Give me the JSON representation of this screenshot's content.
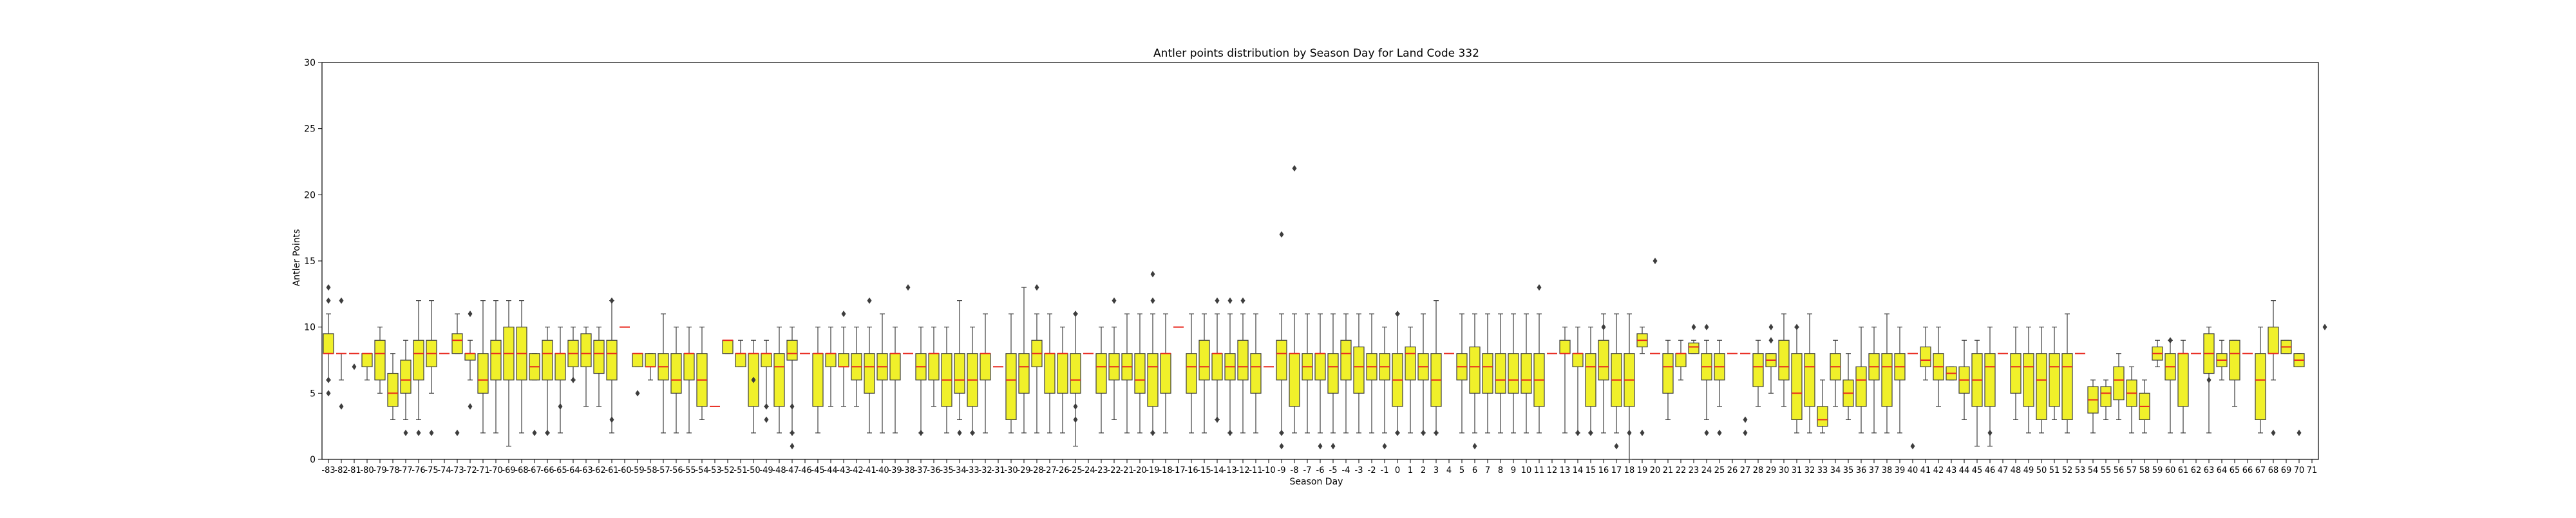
{
  "chart_data": {
    "type": "box",
    "title": "Antler points distribution by Season Day for Land Code 332",
    "xlabel": "Season Day",
    "ylabel": "Antler Points",
    "ylim": [
      0,
      30
    ],
    "yticks": [
      0,
      5,
      10,
      15,
      20,
      25,
      30
    ],
    "categories": [
      -83,
      -82,
      -81,
      -80,
      -79,
      -78,
      -77,
      -76,
      -75,
      -74,
      -73,
      -72,
      -71,
      -70,
      -69,
      -68,
      -67,
      -66,
      -65,
      -64,
      -63,
      -62,
      -61,
      -60,
      -59,
      -58,
      -57,
      -56,
      -55,
      -54,
      -53,
      -52,
      -51,
      -50,
      -49,
      -48,
      -47,
      -46,
      -45,
      -44,
      -43,
      -42,
      -41,
      -40,
      -39,
      -38,
      -37,
      -36,
      -35,
      -34,
      -33,
      -32,
      -31,
      -30,
      -29,
      -28,
      -27,
      -26,
      -25,
      -24,
      -23,
      -22,
      -21,
      -20,
      -19,
      -18,
      -17,
      -16,
      -15,
      -14,
      -13,
      -12,
      -11,
      -10,
      -9,
      -8,
      -7,
      -6,
      -5,
      -4,
      -3,
      -2,
      -1,
      0,
      1,
      2,
      3,
      4,
      5,
      6,
      7,
      8,
      9,
      10,
      11,
      12,
      13,
      14,
      15,
      16,
      17,
      18,
      19,
      20,
      21,
      22,
      23,
      24,
      25,
      26,
      27,
      28,
      29,
      30,
      31,
      32,
      33,
      34,
      35,
      36,
      37,
      38,
      39,
      40,
      41,
      42,
      43,
      44,
      45,
      46,
      47,
      48,
      49,
      50,
      51,
      52,
      53,
      54,
      55,
      56,
      57,
      58,
      59,
      60,
      61,
      62,
      63,
      64,
      65,
      66,
      67,
      68,
      69,
      70,
      71
    ],
    "box_color": "#f0f02a",
    "median_color": "#e8281e",
    "boxes": [
      [
        6,
        8,
        8,
        9.5,
        11
      ],
      [
        6,
        8,
        8,
        8,
        8
      ],
      [
        8,
        8,
        8,
        8,
        8
      ],
      [
        6,
        7,
        8,
        8,
        8
      ],
      [
        5,
        6,
        8,
        9,
        10
      ],
      [
        3,
        4,
        5,
        6.5,
        8
      ],
      [
        3,
        5,
        6,
        7.5,
        9
      ],
      [
        3,
        6,
        8,
        9,
        12
      ],
      [
        5,
        7,
        8,
        9,
        12
      ],
      [
        8,
        8,
        8,
        8,
        8
      ],
      [
        8,
        8,
        9,
        9.5,
        11
      ],
      [
        6,
        7.5,
        8,
        8,
        9
      ],
      [
        2,
        5,
        6,
        8,
        12
      ],
      [
        2,
        6,
        8,
        9,
        12
      ],
      [
        1,
        6,
        8,
        10,
        12
      ],
      [
        2,
        6,
        8,
        10,
        12
      ],
      [
        6,
        6,
        7,
        8,
        8
      ],
      [
        2,
        6,
        8,
        9,
        10
      ],
      [
        2,
        6,
        8,
        8,
        10
      ],
      [
        6,
        7,
        8,
        9,
        10
      ],
      [
        4,
        7,
        8,
        9.5,
        10
      ],
      [
        4,
        6.5,
        8,
        9,
        10
      ],
      [
        2,
        6,
        8,
        9,
        12
      ],
      [
        10,
        10,
        10,
        10,
        10
      ],
      [
        7,
        7,
        8,
        8,
        8
      ],
      [
        6,
        7,
        7,
        8,
        8
      ],
      [
        2,
        6,
        7,
        8,
        11
      ],
      [
        2,
        5,
        6,
        8,
        10
      ],
      [
        2,
        6,
        8,
        8,
        10
      ],
      [
        3,
        4,
        6,
        8,
        10
      ],
      [
        4,
        4,
        4,
        4,
        4
      ],
      [
        8,
        8,
        9,
        9,
        9
      ],
      [
        7,
        7,
        8,
        8,
        9
      ],
      [
        2,
        4,
        8,
        8,
        9
      ],
      [
        4,
        7,
        8,
        8,
        9
      ],
      [
        2,
        4,
        7,
        8,
        10
      ],
      [
        2,
        7.5,
        8,
        9,
        10
      ],
      [
        8,
        8,
        8,
        8,
        8
      ],
      [
        2,
        4,
        8,
        8,
        10
      ],
      [
        4,
        7,
        8,
        8,
        10
      ],
      [
        4,
        7,
        7,
        8,
        10
      ],
      [
        4,
        6,
        7,
        8,
        10
      ],
      [
        2,
        5,
        7,
        8,
        10
      ],
      [
        2,
        6,
        7,
        8,
        11
      ],
      [
        2,
        6,
        8,
        8,
        10
      ],
      [
        8,
        8,
        8,
        8,
        8
      ],
      [
        2,
        6,
        7,
        8,
        10
      ],
      [
        4,
        6,
        8,
        8,
        10
      ],
      [
        2,
        4,
        6,
        8,
        10
      ],
      [
        3,
        5,
        6,
        8,
        12
      ],
      [
        2,
        4,
        6,
        8,
        10
      ],
      [
        2,
        6,
        8,
        8,
        11
      ],
      [
        7,
        7,
        7,
        7,
        7
      ],
      [
        2,
        3,
        6,
        8,
        11
      ],
      [
        2,
        5,
        7,
        8,
        13
      ],
      [
        2,
        7,
        8,
        9,
        11
      ],
      [
        2,
        5,
        8,
        8,
        11
      ],
      [
        2,
        5,
        8,
        8,
        10
      ],
      [
        1,
        5,
        6,
        8,
        11
      ],
      [
        8,
        8,
        8,
        8,
        8
      ],
      [
        2,
        5,
        7,
        8,
        10
      ],
      [
        3,
        6,
        7,
        8,
        10
      ],
      [
        2,
        6,
        7,
        8,
        11
      ],
      [
        2,
        5,
        6,
        8,
        11
      ],
      [
        2,
        4,
        7,
        8,
        11
      ],
      [
        2,
        5,
        8,
        8,
        11
      ],
      [
        10,
        10,
        10,
        10,
        10
      ],
      [
        2,
        5,
        7,
        8,
        11
      ],
      [
        2,
        6,
        7,
        9,
        11
      ],
      [
        3,
        6,
        8,
        8,
        11
      ],
      [
        2,
        6,
        7,
        8,
        11
      ],
      [
        2,
        6,
        7,
        9,
        11
      ],
      [
        2,
        5,
        7,
        8,
        11
      ],
      [
        7,
        7,
        7,
        7,
        7
      ],
      [
        2,
        6,
        8,
        9,
        11
      ],
      [
        2,
        4,
        8,
        8,
        11
      ],
      [
        2,
        6,
        7,
        8,
        11
      ],
      [
        2,
        6,
        8,
        8,
        11
      ],
      [
        2,
        5,
        7,
        8,
        11
      ],
      [
        2,
        6,
        8,
        9,
        11
      ],
      [
        2,
        5,
        7,
        8.5,
        11
      ],
      [
        2,
        6,
        7,
        8,
        11
      ],
      [
        2,
        6,
        7,
        8,
        10
      ],
      [
        2,
        4,
        6,
        8,
        11
      ],
      [
        2,
        6,
        8,
        8.5,
        10
      ],
      [
        2,
        6,
        7,
        8,
        11
      ],
      [
        2,
        4,
        6,
        8,
        12
      ],
      [
        8,
        8,
        8,
        8,
        8
      ],
      [
        2,
        6,
        7,
        8,
        11
      ],
      [
        2,
        5,
        7,
        8.5,
        11
      ],
      [
        2,
        5,
        7,
        8,
        11
      ],
      [
        2,
        5,
        6,
        8,
        11
      ],
      [
        2,
        5,
        6,
        8,
        11
      ],
      [
        2,
        5,
        6,
        8,
        11
      ],
      [
        2,
        4,
        6,
        8,
        11
      ],
      [
        8,
        8,
        8,
        8,
        8
      ],
      [
        2,
        8,
        8,
        9,
        10
      ],
      [
        2,
        7,
        8,
        8,
        10
      ],
      [
        2,
        4,
        7,
        8,
        10
      ],
      [
        2,
        6,
        7,
        9,
        11
      ],
      [
        2,
        4,
        6,
        8,
        11
      ],
      [
        0,
        4,
        6,
        8,
        11
      ],
      [
        8,
        8.5,
        9,
        9.5,
        10
      ],
      [
        8,
        8,
        8,
        8,
        8
      ],
      [
        3,
        5,
        7,
        8,
        9
      ],
      [
        6,
        7,
        8,
        8,
        9
      ],
      [
        8,
        8,
        8.5,
        8.8,
        9
      ],
      [
        3,
        6,
        7,
        8,
        9
      ],
      [
        4,
        6,
        7,
        8,
        9
      ],
      [
        8,
        8,
        8,
        8,
        8
      ],
      [
        8,
        8,
        8,
        8,
        8
      ],
      [
        4,
        5.5,
        7,
        8,
        9
      ],
      [
        5,
        7,
        7.5,
        8,
        8
      ],
      [
        4,
        6,
        7,
        9,
        11
      ],
      [
        2,
        3,
        5,
        8,
        10
      ],
      [
        2,
        4,
        7,
        8,
        11
      ],
      [
        2,
        2.5,
        3,
        4,
        6
      ],
      [
        4,
        6,
        7,
        8,
        9
      ],
      [
        3,
        4,
        5,
        6,
        8
      ],
      [
        2,
        4,
        6,
        7,
        10
      ],
      [
        2,
        6,
        7,
        8,
        10
      ],
      [
        2,
        4,
        7,
        8,
        11
      ],
      [
        2,
        6,
        7,
        8,
        10
      ],
      [
        8,
        8,
        8,
        8,
        8
      ],
      [
        6,
        7,
        7.5,
        8.5,
        10
      ],
      [
        4,
        6,
        7,
        8,
        10
      ],
      [
        6,
        6,
        6.5,
        7,
        7
      ],
      [
        3,
        5,
        6,
        7,
        9
      ],
      [
        1,
        4,
        6,
        8,
        9
      ],
      [
        1,
        4,
        7,
        8,
        10
      ],
      [
        8,
        8,
        8,
        8,
        8
      ],
      [
        3,
        5,
        7,
        8,
        10
      ],
      [
        2,
        4,
        7,
        8,
        10
      ],
      [
        2,
        3,
        6,
        8,
        10
      ],
      [
        3,
        4,
        7,
        8,
        10
      ],
      [
        2,
        3,
        7,
        8,
        11
      ],
      [
        8,
        8,
        8,
        8,
        8
      ],
      [
        2,
        3.5,
        4.5,
        5.5,
        6
      ],
      [
        3,
        4,
        5,
        5.5,
        6
      ],
      [
        3,
        4.5,
        6,
        7,
        8
      ],
      [
        2,
        4,
        5,
        6,
        7
      ],
      [
        2,
        3,
        4,
        5,
        6
      ],
      [
        7,
        7.5,
        8,
        8.5,
        9
      ],
      [
        2,
        6,
        7,
        8,
        9
      ],
      [
        2,
        4,
        8,
        8,
        9
      ],
      [
        8,
        8,
        8,
        8,
        8
      ],
      [
        2,
        6.5,
        8,
        9.5,
        10
      ],
      [
        6,
        7,
        7.5,
        8,
        9
      ],
      [
        4,
        6,
        8,
        9,
        9
      ],
      [
        8,
        8,
        8,
        8,
        8
      ],
      [
        2,
        3,
        6,
        8,
        10
      ],
      [
        6,
        8,
        8,
        10,
        12
      ],
      [
        8,
        8,
        8.5,
        9,
        9
      ],
      [
        7,
        7,
        7.5,
        8,
        8
      ]
    ],
    "outliers": [
      [
        0,
        13
      ],
      [
        0,
        12
      ],
      [
        0,
        6
      ],
      [
        0,
        5
      ],
      [
        1,
        12
      ],
      [
        1,
        4
      ],
      [
        2,
        7
      ],
      [
        6,
        2
      ],
      [
        7,
        2
      ],
      [
        8,
        2
      ],
      [
        10,
        2
      ],
      [
        11,
        11
      ],
      [
        11,
        4
      ],
      [
        16,
        2
      ],
      [
        17,
        2
      ],
      [
        18,
        4
      ],
      [
        19,
        6
      ],
      [
        22,
        3
      ],
      [
        22,
        12
      ],
      [
        24,
        5
      ],
      [
        33,
        6
      ],
      [
        34,
        4
      ],
      [
        34,
        3
      ],
      [
        36,
        2
      ],
      [
        36,
        1
      ],
      [
        36,
        4
      ],
      [
        40,
        11
      ],
      [
        42,
        12
      ],
      [
        45,
        13
      ],
      [
        46,
        2
      ],
      [
        49,
        2
      ],
      [
        50,
        2
      ],
      [
        55,
        13
      ],
      [
        58,
        11
      ],
      [
        58,
        3
      ],
      [
        58,
        4
      ],
      [
        61,
        12
      ],
      [
        64,
        12
      ],
      [
        64,
        14
      ],
      [
        64,
        2
      ],
      [
        69,
        12
      ],
      [
        69,
        3
      ],
      [
        70,
        12
      ],
      [
        70,
        2
      ],
      [
        71,
        12
      ],
      [
        74,
        1
      ],
      [
        74,
        2
      ],
      [
        74,
        17
      ],
      [
        75,
        22
      ],
      [
        77,
        1
      ],
      [
        78,
        1
      ],
      [
        82,
        1
      ],
      [
        83,
        11
      ],
      [
        83,
        2
      ],
      [
        85,
        2
      ],
      [
        86,
        2
      ],
      [
        89,
        1
      ],
      [
        94,
        13
      ],
      [
        97,
        2
      ],
      [
        98,
        2
      ],
      [
        99,
        10
      ],
      [
        100,
        1
      ],
      [
        101,
        2
      ],
      [
        102,
        2
      ],
      [
        103,
        15
      ],
      [
        106,
        10
      ],
      [
        107,
        10
      ],
      [
        107,
        2
      ],
      [
        108,
        2
      ],
      [
        110,
        3
      ],
      [
        110,
        2
      ],
      [
        112,
        10
      ],
      [
        112,
        9
      ],
      [
        114,
        10
      ],
      [
        123,
        1
      ],
      [
        129,
        2
      ],
      [
        143,
        9
      ],
      [
        146,
        6
      ],
      [
        151,
        2
      ],
      [
        153,
        2
      ],
      [
        155,
        10
      ]
    ]
  }
}
